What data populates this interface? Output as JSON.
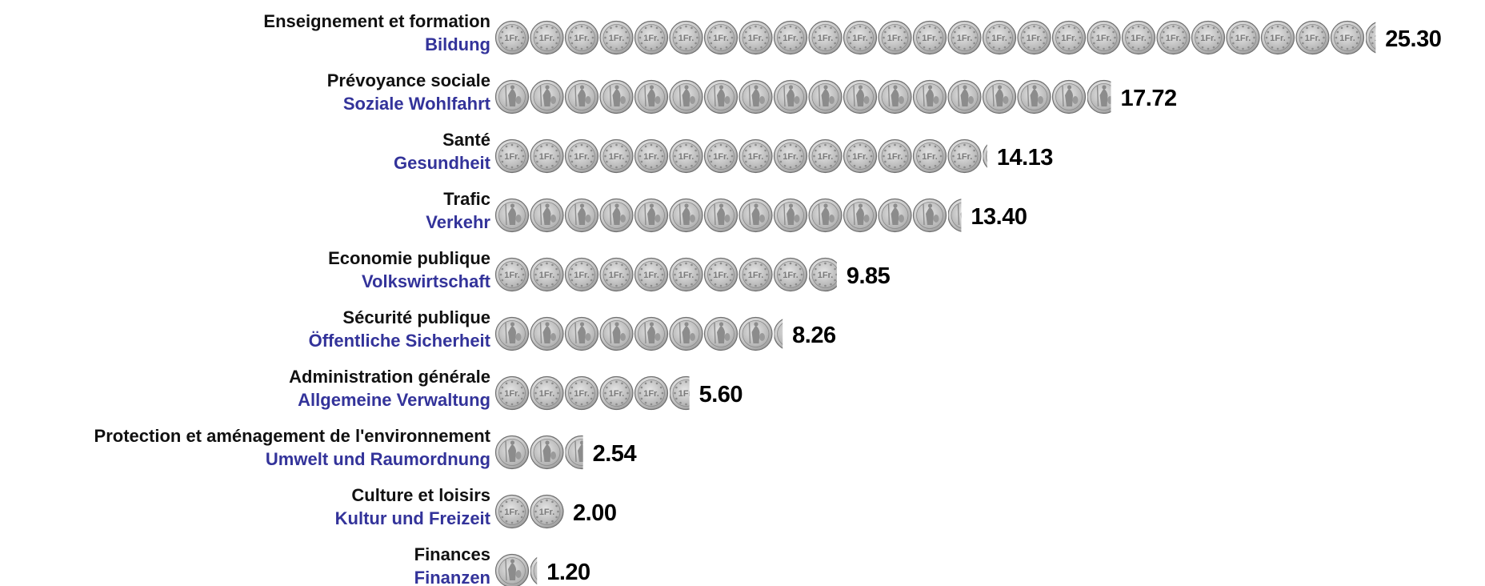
{
  "chart_data": {
    "type": "bar",
    "unit_icon": "swiss-1-franc-coin-icon",
    "categories": [
      {
        "fr": "Enseignement et formation",
        "de": "Bildung",
        "value": 25.3,
        "label": "25.30",
        "face": "front"
      },
      {
        "fr": "Prévoyance sociale",
        "de": "Soziale Wohlfahrt",
        "value": 17.72,
        "label": "17.72",
        "face": "back"
      },
      {
        "fr": "Santé",
        "de": "Gesundheit",
        "value": 14.13,
        "label": "14.13",
        "face": "front"
      },
      {
        "fr": "Trafic",
        "de": "Verkehr",
        "value": 13.4,
        "label": "13.40",
        "face": "back"
      },
      {
        "fr": "Economie publique",
        "de": "Volkswirtschaft",
        "value": 9.85,
        "label": "9.85",
        "face": "front"
      },
      {
        "fr": "Sécurité publique",
        "de": "Öffentliche Sicherheit",
        "value": 8.26,
        "label": "8.26",
        "face": "back"
      },
      {
        "fr": "Administration générale",
        "de": "Allgemeine Verwaltung",
        "value": 5.6,
        "label": "5.60",
        "face": "front"
      },
      {
        "fr": "Protection et aménagement de l'environnement",
        "de": "Umwelt und Raumordnung",
        "value": 2.54,
        "label": "2.54",
        "face": "back"
      },
      {
        "fr": "Culture et loisirs",
        "de": "Kultur und Freizeit",
        "value": 2.0,
        "label": "2.00",
        "face": "front"
      },
      {
        "fr": "Finances",
        "de": "Finanzen",
        "value": 1.2,
        "label": "1.20",
        "face": "back"
      }
    ],
    "colors": {
      "label_fr": "#111111",
      "label_de": "#33339a",
      "value": "#000000",
      "coin": "#c8c8c8"
    }
  }
}
